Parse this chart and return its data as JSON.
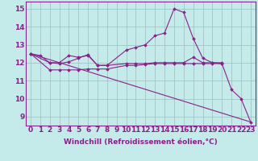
{
  "xlabel": "Windchill (Refroidissement éolien,°C)",
  "xlim": [
    -0.5,
    23.5
  ],
  "ylim": [
    8.5,
    15.4
  ],
  "xticks": [
    0,
    1,
    2,
    3,
    4,
    5,
    6,
    7,
    8,
    9,
    10,
    11,
    12,
    13,
    14,
    15,
    16,
    17,
    18,
    19,
    20,
    21,
    22,
    23
  ],
  "yticks": [
    9,
    10,
    11,
    12,
    13,
    14,
    15
  ],
  "bg_color": "#c5eaea",
  "line_color": "#882288",
  "grid_color": "#9dbdbd",
  "series": [
    {
      "x": [
        0,
        1,
        2,
        3,
        4,
        5,
        6,
        7,
        8,
        10,
        11,
        12,
        13,
        14,
        15,
        16,
        17,
        18,
        19,
        20,
        21,
        22,
        23
      ],
      "y": [
        12.5,
        12.4,
        12.0,
        11.95,
        12.05,
        12.25,
        12.45,
        11.85,
        11.85,
        12.7,
        12.85,
        13.0,
        13.5,
        13.65,
        15.0,
        14.8,
        13.35,
        12.25,
        12.0,
        11.95,
        10.5,
        10.0,
        8.7
      ]
    },
    {
      "x": [
        0,
        2,
        3,
        4,
        5,
        6,
        7,
        8,
        10,
        11,
        12,
        13,
        14,
        15,
        16,
        17,
        18,
        19,
        20
      ],
      "y": [
        12.5,
        12.0,
        12.0,
        12.4,
        12.3,
        12.4,
        11.85,
        11.85,
        11.95,
        11.95,
        11.95,
        12.0,
        12.0,
        12.0,
        12.0,
        12.3,
        12.0,
        12.0,
        12.0
      ]
    },
    {
      "x": [
        0,
        2,
        3,
        4,
        5,
        6,
        7,
        8,
        10,
        11,
        12,
        13,
        14,
        15,
        16,
        17,
        18,
        19,
        20
      ],
      "y": [
        12.5,
        11.6,
        11.6,
        11.6,
        11.6,
        11.65,
        11.65,
        11.65,
        11.85,
        11.85,
        11.9,
        11.95,
        11.95,
        11.95,
        11.95,
        11.95,
        11.95,
        11.95,
        11.95
      ]
    },
    {
      "x": [
        0,
        23
      ],
      "y": [
        12.5,
        8.7
      ],
      "no_marker": true
    }
  ],
  "font_size_xlabel": 6.5,
  "font_size_ticks": 6.5
}
